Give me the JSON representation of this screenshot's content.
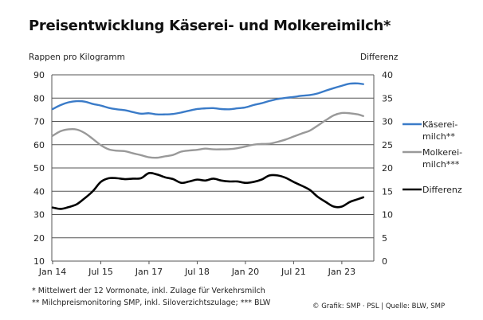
{
  "chart_data": {
    "type": "line",
    "title": "Preisentwicklung Käserei- und Molkereimilch*",
    "ylabel": "Rappen pro Kilogramm",
    "ylabel_right": "Differenz",
    "xlabel": "",
    "ylim": [
      10,
      90
    ],
    "ylim_right": [
      0,
      40
    ],
    "yticks": [
      10,
      20,
      30,
      40,
      50,
      60,
      70,
      80,
      90
    ],
    "yticks_right": [
      0,
      5,
      10,
      15,
      20,
      25,
      30,
      35,
      40
    ],
    "grid": true,
    "legend_position": "right",
    "x_months_from_jan14": [
      0,
      3,
      6,
      9,
      12,
      15,
      18,
      21,
      24,
      27,
      30,
      33,
      36,
      39,
      42,
      45,
      48,
      51,
      54,
      57,
      60,
      63,
      66,
      69,
      72,
      75,
      78,
      81,
      84,
      87,
      90,
      93,
      96,
      99,
      102,
      105,
      108,
      111,
      114,
      116
    ],
    "xticks": [
      {
        "label": "Jan 14",
        "month": 0
      },
      {
        "label": "Jul 15",
        "month": 18
      },
      {
        "label": "Jan 17",
        "month": 36
      },
      {
        "label": "Jul 18",
        "month": 54
      },
      {
        "label": "Jan 20",
        "month": 72
      },
      {
        "label": "Jul 21",
        "month": 90
      },
      {
        "label": "Jan 23",
        "month": 108
      }
    ],
    "series": [
      {
        "name": "Käsereimilch**",
        "legend": [
          "Käserei-",
          "milch**"
        ],
        "axis": "left",
        "color": "#3a7bc8",
        "values": [
          75.3,
          77.0,
          78.2,
          78.7,
          78.5,
          77.5,
          76.8,
          75.8,
          75.2,
          74.8,
          74.0,
          73.3,
          73.5,
          73.0,
          73.0,
          73.2,
          73.8,
          74.6,
          75.3,
          75.6,
          75.7,
          75.3,
          75.2,
          75.6,
          76.0,
          77.0,
          77.8,
          78.8,
          79.6,
          80.1,
          80.5,
          81.0,
          81.3,
          82.0,
          83.2,
          84.3,
          85.3,
          86.2,
          86.3,
          86.0
        ]
      },
      {
        "name": "Molkereimilch***",
        "legend": [
          "Molkerei-",
          "milch***"
        ],
        "axis": "left",
        "color": "#999999",
        "values": [
          63.8,
          65.8,
          66.6,
          66.5,
          65.0,
          62.5,
          59.8,
          58.0,
          57.4,
          57.2,
          56.3,
          55.5,
          54.6,
          54.4,
          55.0,
          55.6,
          57.0,
          57.5,
          57.8,
          58.3,
          58.0,
          58.0,
          58.1,
          58.5,
          59.2,
          60.0,
          60.3,
          60.4,
          61.2,
          62.2,
          63.5,
          64.8,
          66.0,
          68.2,
          70.5,
          72.6,
          73.6,
          73.5,
          73.0,
          72.3
        ]
      },
      {
        "name": "Differenz",
        "legend": [
          "Differenz"
        ],
        "axis": "right",
        "color": "#000000",
        "values": [
          11.5,
          11.2,
          11.6,
          12.2,
          13.5,
          15.0,
          17.0,
          17.8,
          17.8,
          17.6,
          17.7,
          17.8,
          18.9,
          18.6,
          18.0,
          17.6,
          16.8,
          17.1,
          17.5,
          17.3,
          17.7,
          17.3,
          17.1,
          17.1,
          16.8,
          17.0,
          17.5,
          18.4,
          18.4,
          17.9,
          17.0,
          16.2,
          15.3,
          13.8,
          12.7,
          11.7,
          11.7,
          12.7,
          13.3,
          13.7
        ]
      }
    ]
  },
  "footnotes": [
    "* Mittelwert der 12 Vormonate, inkl. Zulage für Verkehrsmilch",
    "** Milchpreismonitoring SMP, inkl. Siloverzichtszulage; *** BLW"
  ],
  "credit": "© Grafik: SMP · PSL | Quelle: BLW, SMP"
}
